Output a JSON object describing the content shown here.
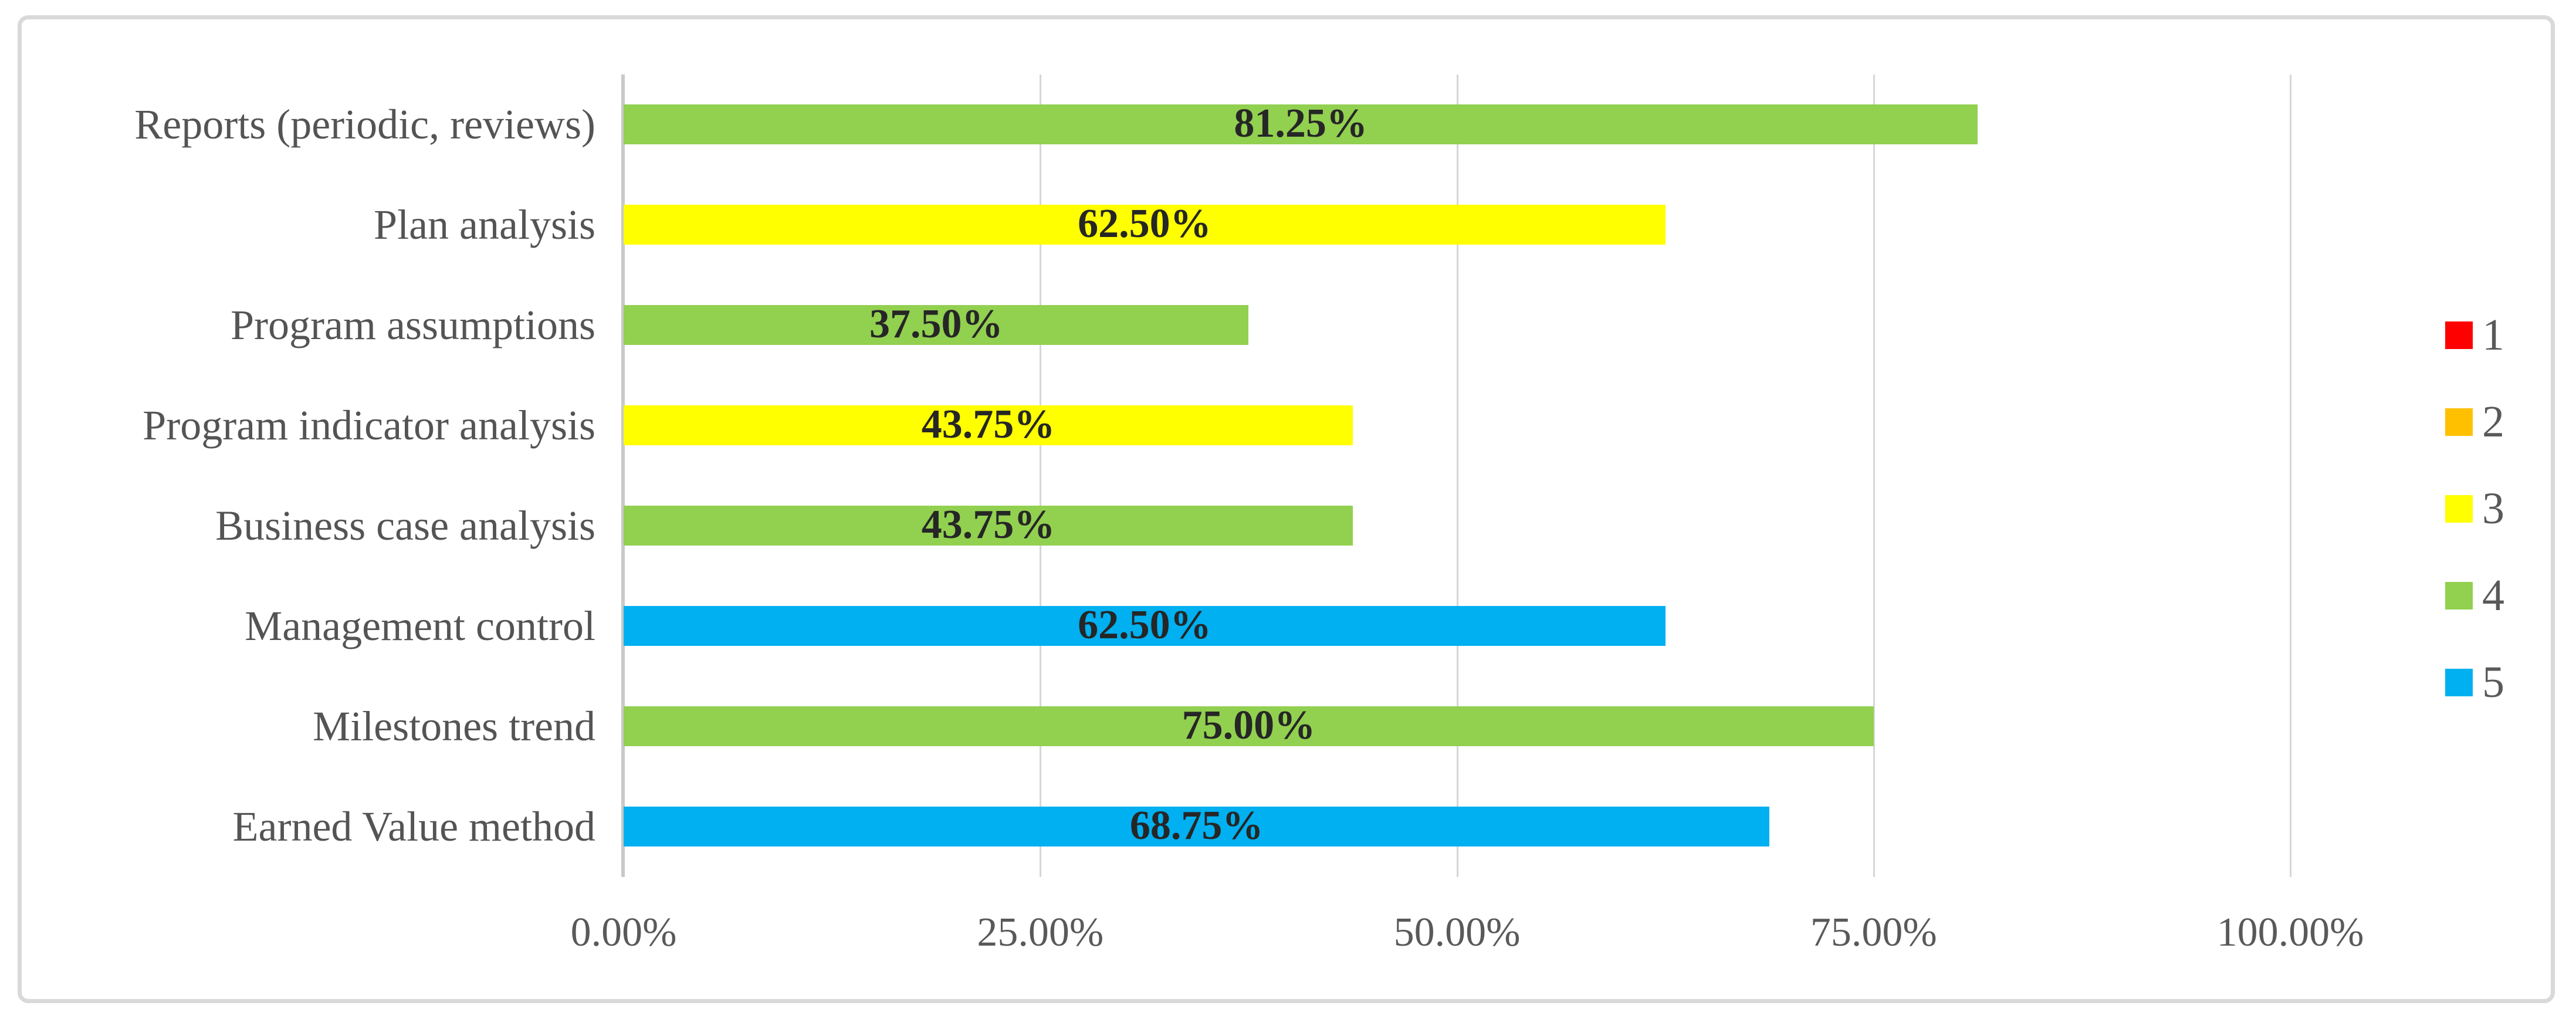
{
  "figure": {
    "description": "Horizontal bar chart of program monitoring and controlling methods with percentage usage",
    "background": "#FFFFFF",
    "frame_border_color": "#D9D9D9"
  },
  "chart_data": {
    "type": "bar",
    "orientation": "horizontal",
    "title": "",
    "xlabel": "",
    "ylabel": "",
    "categories": [
      "Reports (periodic, reviews)",
      "Plan analysis",
      "Program assumptions",
      "Program indicator analysis",
      "Business case analysis",
      "Management control",
      "Milestones trend",
      "Earned Value method"
    ],
    "values": [
      81.25,
      62.5,
      37.5,
      43.75,
      43.75,
      62.5,
      75.0,
      68.75
    ],
    "bar_labels": [
      "81.25%",
      "62.50%",
      "37.50%",
      "43.75%",
      "43.75%",
      "62.50%",
      "75.00%",
      "68.75%"
    ],
    "bar_series": [
      4,
      3,
      4,
      3,
      4,
      5,
      4,
      5
    ],
    "series_colors": {
      "1": "#FF0000",
      "2": "#FFC000",
      "3": "#FFFF00",
      "4": "#92D050",
      "5": "#00B0F0"
    },
    "x_tick_values": [
      0,
      25,
      50,
      75,
      100
    ],
    "x_tick_labels": [
      "0.00%",
      "25.00%",
      "50.00%",
      "75.00%",
      "100.00%"
    ],
    "xlim": [
      0,
      100
    ],
    "grid": true,
    "gridline_color": "#D6D6D6",
    "axis_line_color": "#C9C9C9",
    "legend_position": "right-center",
    "legend": [
      {
        "label": "1",
        "color": "#FF0000"
      },
      {
        "label": "2",
        "color": "#FFC000"
      },
      {
        "label": "3",
        "color": "#FFFF00"
      },
      {
        "label": "4",
        "color": "#92D050"
      },
      {
        "label": "5",
        "color": "#00B0F0"
      }
    ],
    "text_colors": {
      "category_label": "#545454",
      "data_label": "#262626",
      "tick_label": "#595959",
      "legend_label": "#595959"
    }
  }
}
